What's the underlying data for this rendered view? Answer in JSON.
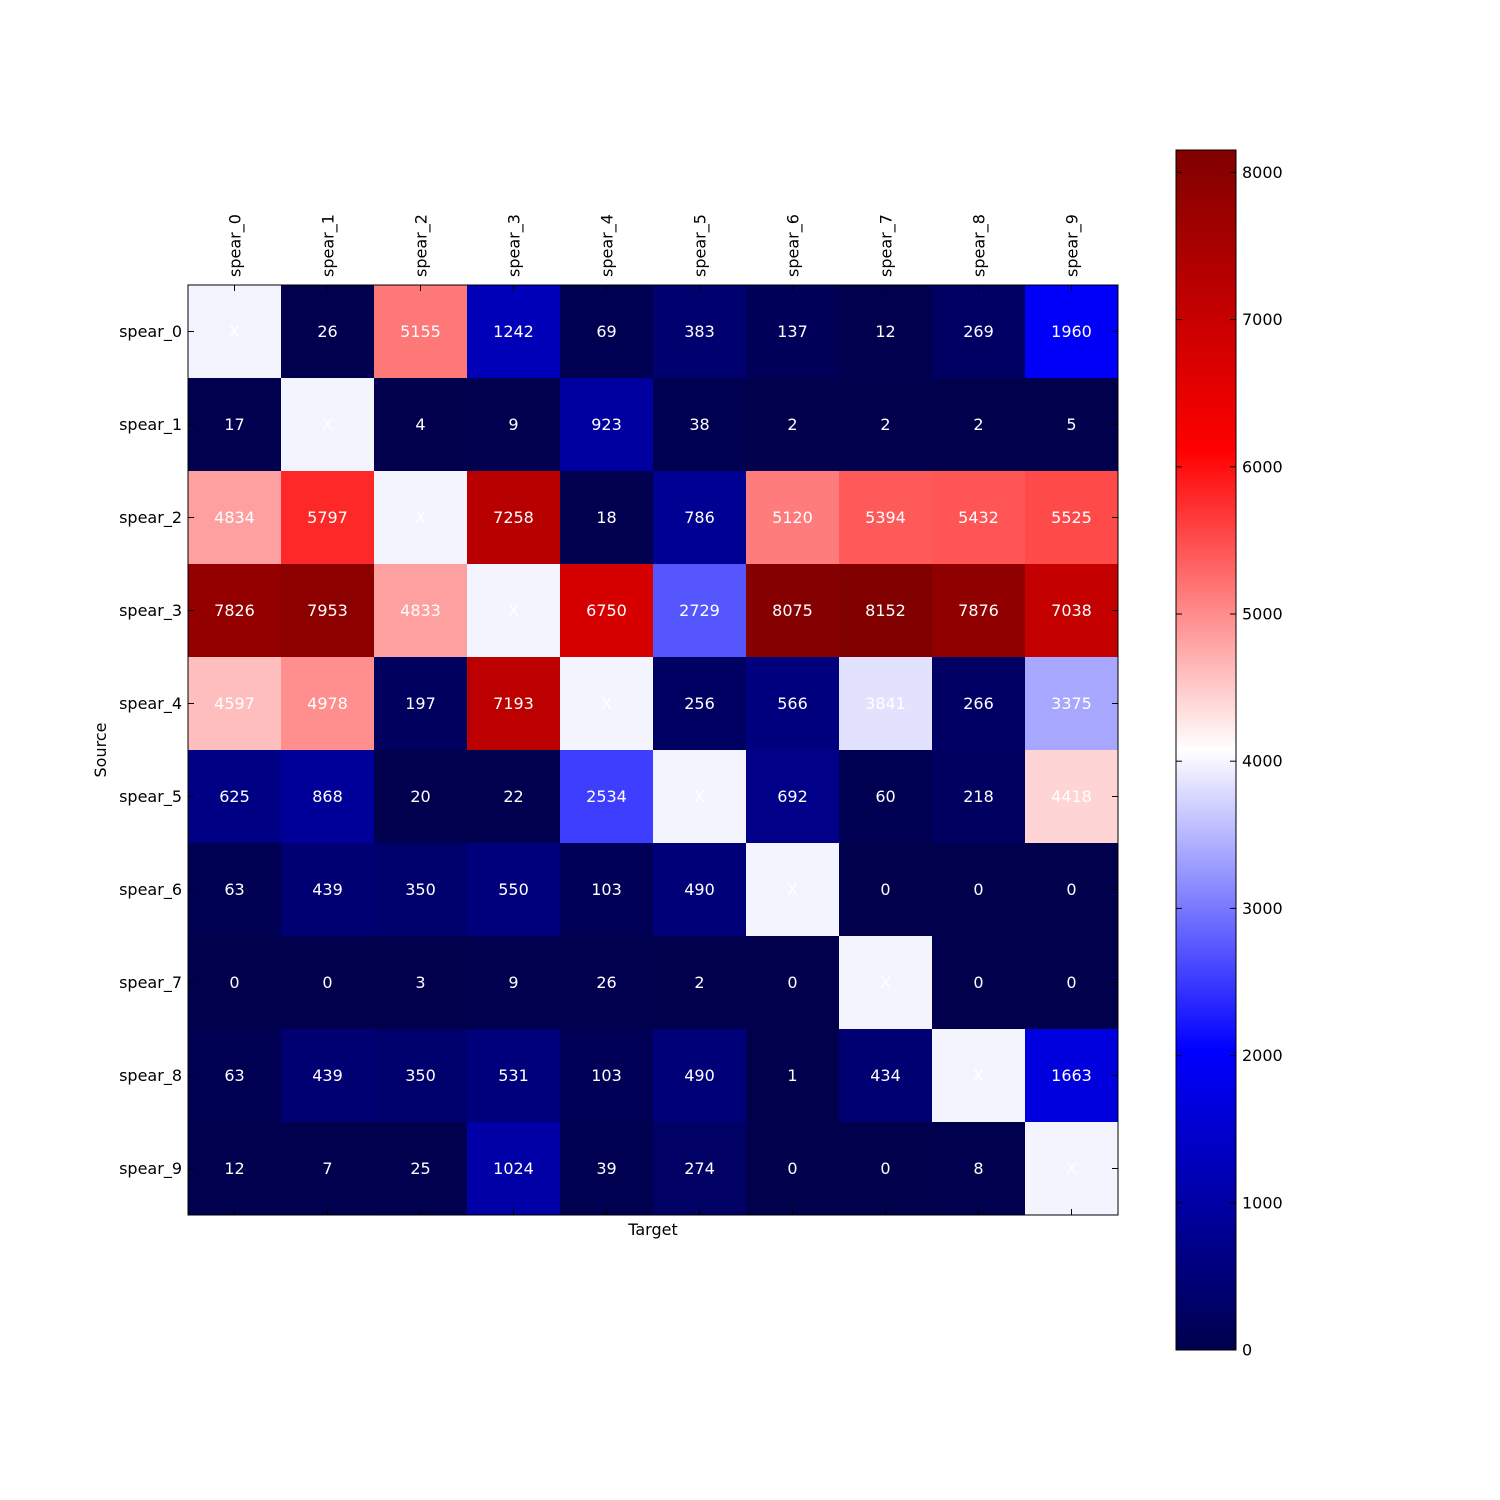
{
  "chart_data": {
    "type": "heatmap",
    "title": "",
    "xlabel": "Target",
    "ylabel": "Source",
    "x_categories": [
      "spear_0",
      "spear_1",
      "spear_2",
      "spear_3",
      "spear_4",
      "spear_5",
      "spear_6",
      "spear_7",
      "spear_8",
      "spear_9"
    ],
    "y_categories": [
      "spear_0",
      "spear_1",
      "spear_2",
      "spear_3",
      "spear_4",
      "spear_5",
      "spear_6",
      "spear_7",
      "spear_8",
      "spear_9"
    ],
    "values": [
      [
        null,
        26,
        5155,
        1242,
        69,
        383,
        137,
        12,
        269,
        1960
      ],
      [
        17,
        null,
        4,
        9,
        923,
        38,
        2,
        2,
        2,
        5
      ],
      [
        4834,
        5797,
        null,
        7258,
        18,
        786,
        5120,
        5394,
        5432,
        5525
      ],
      [
        7826,
        7953,
        4833,
        null,
        6750,
        2729,
        8075,
        8152,
        7876,
        7038
      ],
      [
        4597,
        4978,
        197,
        7193,
        null,
        256,
        566,
        3841,
        266,
        3375
      ],
      [
        625,
        868,
        20,
        22,
        2534,
        null,
        692,
        60,
        218,
        4418
      ],
      [
        63,
        439,
        350,
        550,
        103,
        490,
        null,
        0,
        0,
        0
      ],
      [
        0,
        0,
        3,
        9,
        26,
        2,
        0,
        null,
        0,
        0
      ],
      [
        63,
        439,
        350,
        531,
        103,
        490,
        1,
        434,
        null,
        1663
      ],
      [
        12,
        7,
        25,
        1024,
        39,
        274,
        0,
        0,
        8,
        null
      ]
    ],
    "diagonal_label": "X",
    "colorscale": "seismic",
    "colorbar": {
      "vmin": 0,
      "vmax": 8152,
      "ticks": [
        0,
        1000,
        2000,
        3000,
        4000,
        5000,
        6000,
        7000,
        8000
      ],
      "tick_labels": [
        "0",
        "1000",
        "2000",
        "3000",
        "4000",
        "5000",
        "6000",
        "7000",
        "8000"
      ]
    },
    "grid": false,
    "x_ticks_position": "top",
    "colorbar_position": "right"
  }
}
